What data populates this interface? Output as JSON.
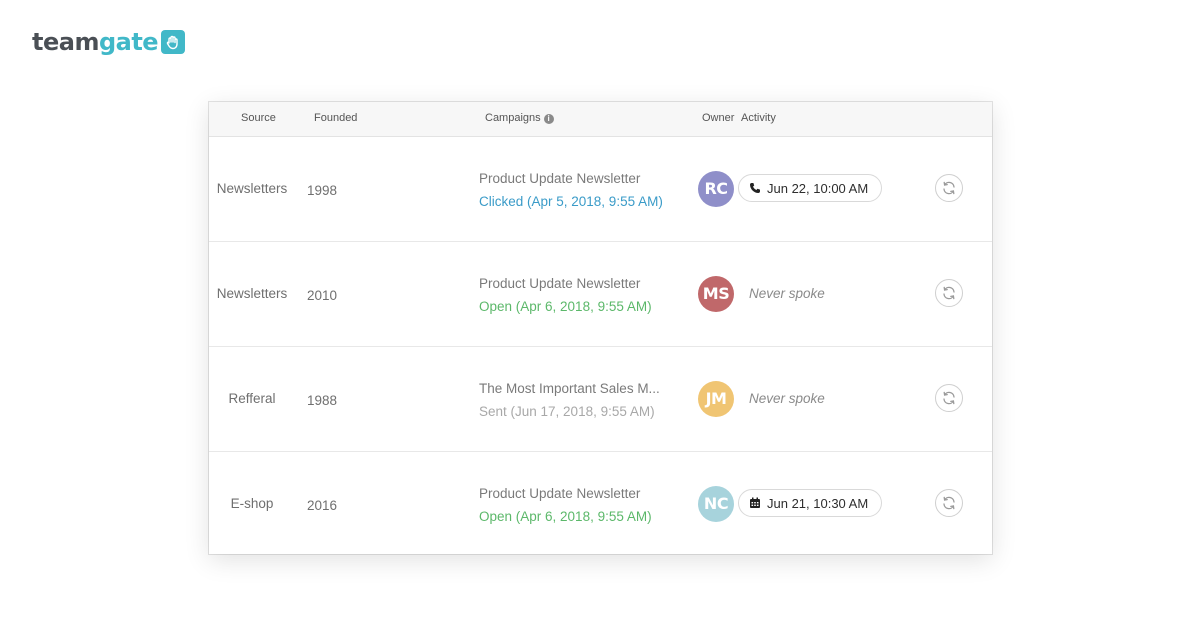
{
  "brand": {
    "name_part1": "team",
    "name_part2": "gate",
    "accent_color": "#41b8c8"
  },
  "table": {
    "headers": {
      "source": "Source",
      "founded": "Founded",
      "campaigns": "Campaigns",
      "owner": "Owner",
      "activity": "Activity"
    },
    "rows": [
      {
        "source": "Newsletters",
        "founded": "1998",
        "campaign_title": "Product Update Newsletter",
        "campaign_status": "Clicked (Apr 5, 2018, 9:55 AM)",
        "status_type": "clicked",
        "owner_initials": "RC",
        "owner_color": "#8f8fc9",
        "activity_type": "phone",
        "activity_icon": "phone-icon",
        "activity_text": "Jun 22, 10:00 AM"
      },
      {
        "source": "Newsletters",
        "founded": "2010",
        "campaign_title": "Product Update Newsletter",
        "campaign_status": "Open (Apr 6, 2018, 9:55 AM)",
        "status_type": "open",
        "owner_initials": "MS",
        "owner_color": "#c0686a",
        "activity_type": "none",
        "activity_text": "Never spoke"
      },
      {
        "source": "Refferal",
        "founded": "1988",
        "campaign_title": "The Most Important Sales M...",
        "campaign_status": "Sent (Jun 17, 2018, 9:55 AM)",
        "status_type": "sent",
        "owner_initials": "JM",
        "owner_color": "#f0c573",
        "activity_type": "none",
        "activity_text": "Never spoke"
      },
      {
        "source": "E-shop",
        "founded": "2016",
        "campaign_title": "Product Update Newsletter",
        "campaign_status": "Open (Apr 6, 2018, 9:55 AM)",
        "status_type": "open",
        "owner_initials": "NC",
        "owner_color": "#a7d3dc",
        "activity_type": "meeting",
        "activity_icon": "calendar-icon",
        "activity_text": "Jun 21, 10:30 AM"
      }
    ]
  }
}
